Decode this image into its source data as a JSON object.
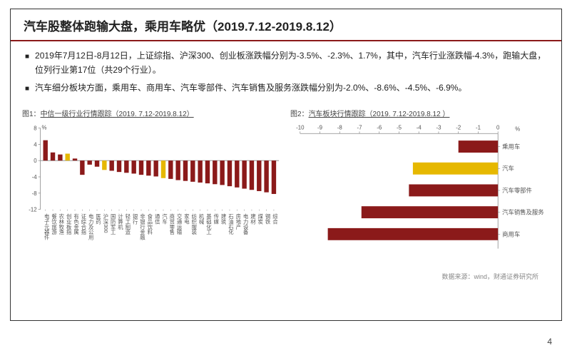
{
  "title": "汽车股整体跑输大盘，乘用车略优（2019.7.12-2019.8.12）",
  "bullet1": "2019年7月12日-8月12日，上证综指、沪深300、创业板涨跌幅分别为-3.5%、-2.3%、1.7%，其中，汽车行业涨跌幅-4.3%，跑输大盘，位列行业第17位（共29个行业）。",
  "bullet2": "汽车细分板块方面，乘用车、商用车、汽车零部件、汽车销售及服务涨跌幅分别为-2.0%、-8.6%、-4.5%、-6.9%。",
  "chart1_title_prefix": "图1：",
  "chart1_title": "中信一级行业行情跟踪（2019. 7.12-2019.8.12）",
  "chart2_title_prefix": "图2：",
  "chart2_title": "汽车板块行情跟踪（2019. 7.12-2019.8.12 ）",
  "source": "数据来源：wind，财通证券研究所",
  "page_num": "4",
  "colors": {
    "highlight": "#e6b800",
    "bar": "#8b1a1a",
    "axis": "#888",
    "text": "#555"
  },
  "chart1": {
    "ylabel": "%",
    "ymin": -12,
    "ymax": 8,
    "ystep": 4,
    "categories": [
      "电子元器件",
      "餐饮旅游",
      "农林牧渔",
      "创业板指",
      "有色金属",
      "证综合指",
      "电力及公用",
      "医药",
      "沪深300",
      "国防军工",
      "计算机",
      "轻工制造",
      "银行",
      "非银行金融",
      "食品饮料",
      "通信",
      "汽车",
      "商贸零售",
      "交通运输",
      "家电",
      "纺织服装",
      "机械",
      "基础化工",
      "传媒",
      "建筑",
      "石油石化",
      "房地产",
      "电力设备",
      "建材",
      "煤炭",
      "钢铁",
      "综合"
    ],
    "values": [
      5.0,
      2.0,
      1.5,
      1.7,
      0.5,
      -3.5,
      -1.0,
      -1.5,
      -2.3,
      -2.5,
      -2.8,
      -3.0,
      -3.2,
      -3.5,
      -3.7,
      -3.9,
      -4.3,
      -4.5,
      -4.8,
      -5.0,
      -5.2,
      -5.4,
      -5.6,
      -5.8,
      -6.0,
      -6.3,
      -6.6,
      -6.9,
      -7.2,
      -7.5,
      -7.8,
      -8.2
    ],
    "highlight_indices": [
      3,
      8,
      16
    ]
  },
  "chart2": {
    "ylabel": "%",
    "xmin": -10,
    "xmax": 0,
    "xstep": 1,
    "categories": [
      "乘用车",
      "汽车",
      "汽车零部件",
      "汽车销售及服务",
      "商用车"
    ],
    "values": [
      -2.0,
      -4.3,
      -4.5,
      -6.9,
      -8.6
    ],
    "highlight_index": 1
  }
}
